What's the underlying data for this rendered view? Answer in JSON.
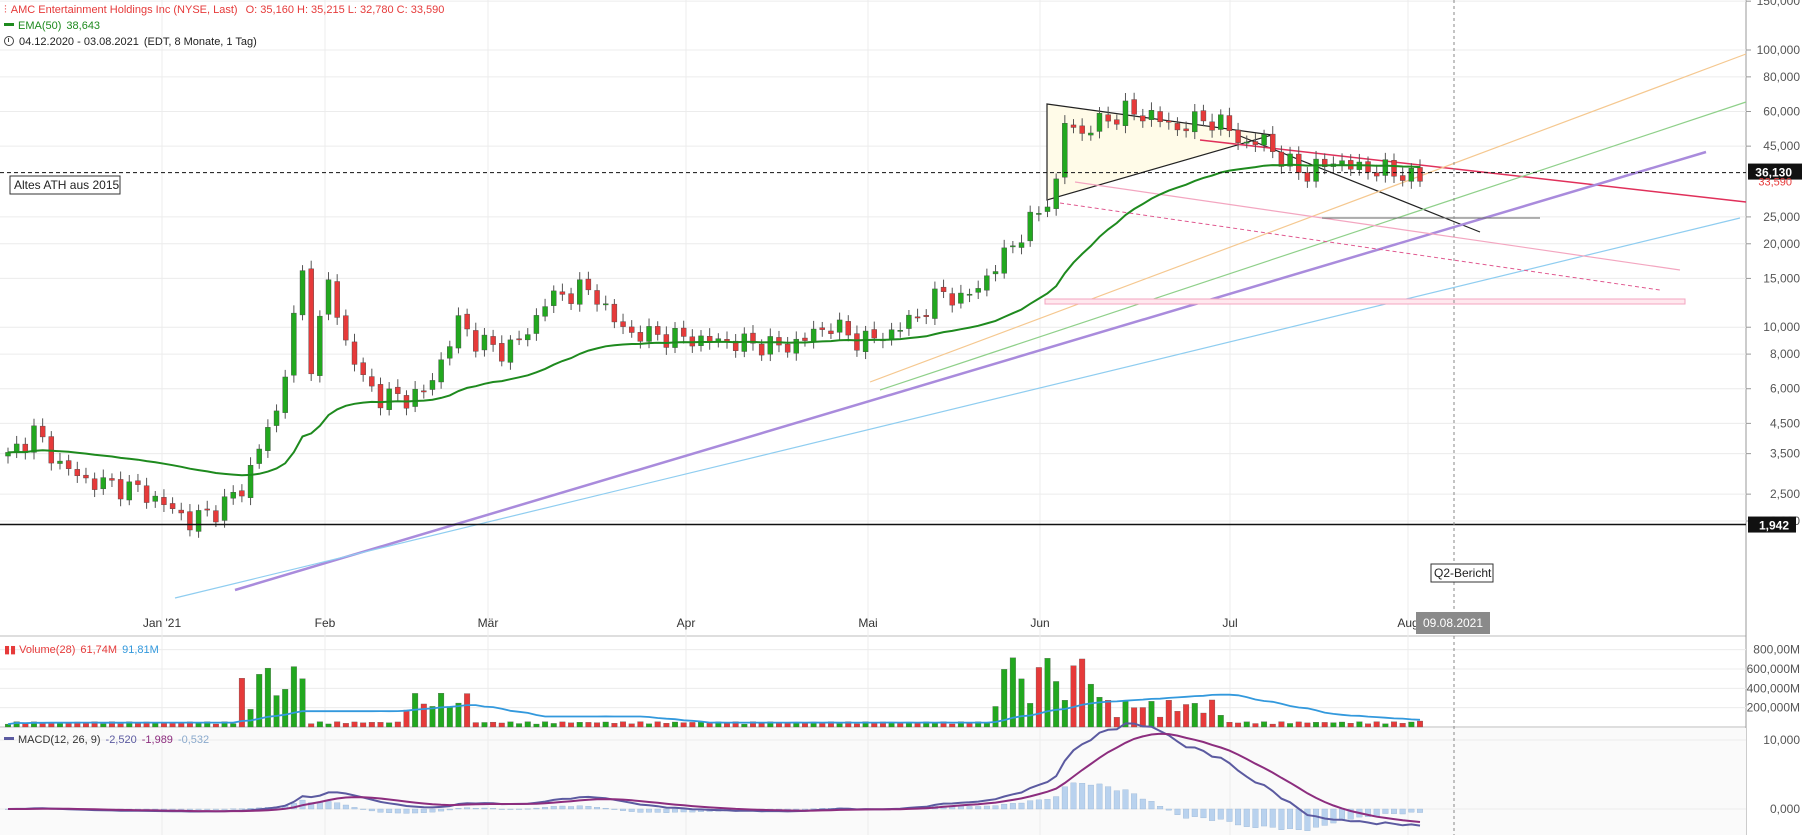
{
  "header": {
    "title": "AMC Entertainment Holdings Inc (NYSE, Last)",
    "ohlc": "O: 35,160  H: 35,215  L: 32,780  C: 33,590",
    "ema_label": "EMA(50)",
    "ema_value": "38,643",
    "period": "04.12.2020 - 03.08.2021",
    "period_detail": "(EDT, 8 Monate, 1 Tag)"
  },
  "volume_legend": {
    "label": "Volume(28)",
    "value1": "61,74M",
    "value2": "91,81M"
  },
  "macd_legend": {
    "label": "MACD(12, 26, 9)",
    "v1": "-2,520",
    "v2": "-1,989",
    "v3": "-0,532"
  },
  "annotations": {
    "ath_box": "Altes ATH aus 2015",
    "q2_box": "Q2-Bericht"
  },
  "markers": {
    "price_line": "36,130",
    "price_line_value": 36.13,
    "last_price": "33,590",
    "bottom_line": "1,942",
    "bottom_line_value": 1.942,
    "date_marker": "09.08.2021"
  },
  "colors": {
    "up": "#22a81f",
    "down": "#e63a3a",
    "ema": "#1e8a1e",
    "volume_ma": "#3399dd",
    "macd": "#5b5aa0",
    "signal": "#8c2d7e",
    "hist": "#b9d2ee"
  },
  "chart_data": [
    {
      "type": "candlestick",
      "title": "AMC Entertainment Holdings Inc (NYSE, Last)",
      "yscale": "log",
      "ylim": [
        1.9,
        150
      ],
      "x_ticks": [
        "Jan '21",
        "Feb",
        "Mär",
        "Apr",
        "Mai",
        "Jun",
        "Jul",
        "Aug"
      ],
      "y_ticks": [
        "150,000",
        "100,000",
        "80,000",
        "60,000",
        "45,000",
        "25,000",
        "20,000",
        "15,000",
        "10,000",
        "8,000",
        "6,000",
        "4,500",
        "3,500",
        "2,500",
        "2,000"
      ],
      "y_tick_values": [
        150,
        100,
        80,
        60,
        45,
        25,
        20,
        15,
        10,
        8,
        6,
        4.5,
        3.5,
        2.5,
        2
      ],
      "last_close": 33.59,
      "ema50_last": 38.643
    },
    {
      "type": "bar",
      "title": "Volume(28)",
      "unit": "M",
      "y_ticks": [
        "800,00M",
        "600,000M",
        "400,000M",
        "200,000M"
      ],
      "y_tick_values": [
        800,
        600,
        400,
        200
      ],
      "last_volume": 61.74,
      "volume_ma_last": 91.81
    },
    {
      "type": "line",
      "title": "MACD(12, 26, 9)",
      "y_ticks": [
        "10,000",
        "0,000"
      ],
      "y_tick_values": [
        10,
        0
      ],
      "last": {
        "macd": -2.52,
        "signal": -1.989,
        "histogram": -0.532
      }
    }
  ]
}
